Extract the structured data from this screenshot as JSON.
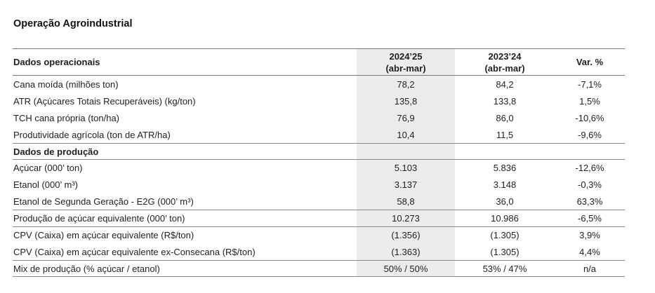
{
  "title": "Operação Agroindustrial",
  "header": {
    "label": "Dados operacionais",
    "col1_line1": "2024’25",
    "col1_line2": "(abr-mar)",
    "col2_line1": "2023’24",
    "col2_line2": "(abr-mar)",
    "col3": "Var. %"
  },
  "rows": [
    {
      "label": "Cana moída (milhões ton)",
      "v1": "78,2",
      "v2": "84,2",
      "v3": "-7,1%"
    },
    {
      "label": "ATR (Açúcares Totais Recuperáveis) (kg/ton)",
      "v1": "135,8",
      "v2": "133,8",
      "v3": "1,5%"
    },
    {
      "label": "TCH cana própria (ton/ha)",
      "v1": "76,9",
      "v2": "86,0",
      "v3": "-10,6%"
    },
    {
      "label": "Produtividade agrícola (ton de ATR/ha)",
      "v1": "10,4",
      "v2": "11,5",
      "v3": "-9,6%"
    }
  ],
  "section2": {
    "label": "Dados de produção"
  },
  "rows2": [
    {
      "label": "Açúcar (000’ ton)",
      "v1": "5.103",
      "v2": "5.836",
      "v3": "-12,6%"
    },
    {
      "label": "Etanol (000’ m³)",
      "v1": "3.137",
      "v2": "3.148",
      "v3": "-0,3%"
    },
    {
      "label": "Etanol de Segunda Geração - E2G (000’ m³)",
      "v1": "58,8",
      "v2": "36,0",
      "v3": "63,3%"
    },
    {
      "label": "Produção de açúcar equivalente (000’ ton)",
      "v1": "10.273",
      "v2": "10.986",
      "v3": "-6,5%"
    },
    {
      "label": "CPV (Caixa) em açúcar equivalente (R$/ton)",
      "v1": "(1.356)",
      "v2": "(1.305)",
      "v3": "3,9%"
    },
    {
      "label": "CPV (Caixa) em açúcar equivalente ex-Consecana (R$/ton)",
      "v1": "(1.363)",
      "v2": "(1.305)",
      "v3": "4,4%"
    },
    {
      "label": "Mix de produção (% açúcar / etanol)",
      "v1": "50% / 50%",
      "v2": "53% / 47%",
      "v3": "n/a"
    }
  ]
}
